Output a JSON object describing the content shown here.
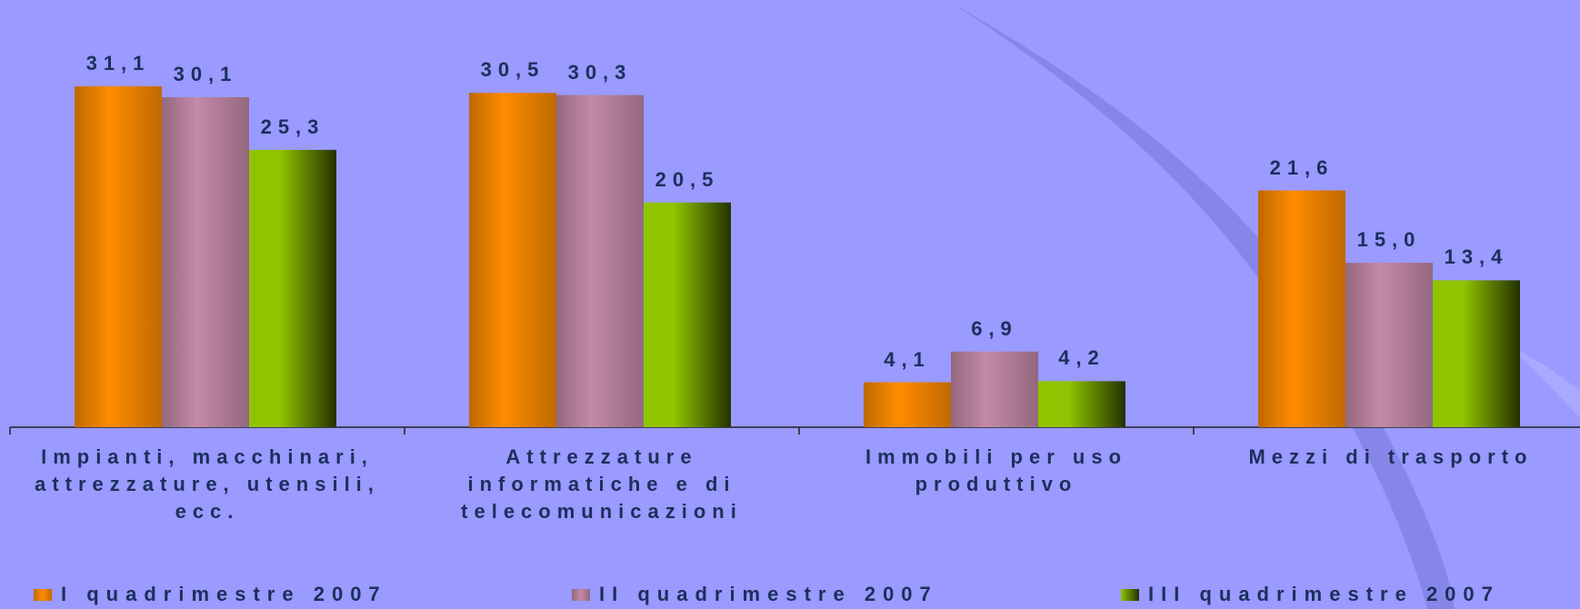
{
  "chart_data": {
    "type": "bar",
    "categories": [
      "Impianti, macchinari, attrezzature, utensili, ecc.",
      "Attrezzature informatiche e di telecomunicazioni",
      "Immobili per uso produttivo",
      "Mezzi di trasporto"
    ],
    "series": [
      {
        "name": "I quadrimestre 2007",
        "color": "#ff8c00",
        "values": [
          31.1,
          30.5,
          4.1,
          21.6
        ],
        "value_labels": [
          "31,1",
          "30,5",
          "4,1",
          "21,6"
        ]
      },
      {
        "name": "II quadrimestre 2007",
        "color": "#c48aa8",
        "values": [
          30.1,
          30.3,
          6.9,
          15.0
        ],
        "value_labels": [
          "30,1",
          "30,3",
          "6,9",
          "15,0"
        ]
      },
      {
        "name": "III quadrimestre 2007",
        "color": "#8fc400",
        "values": [
          25.3,
          20.5,
          4.2,
          13.4
        ],
        "value_labels": [
          "25,3",
          "20,5",
          "4,2",
          "13,4"
        ]
      }
    ],
    "legend": "bottom"
  }
}
